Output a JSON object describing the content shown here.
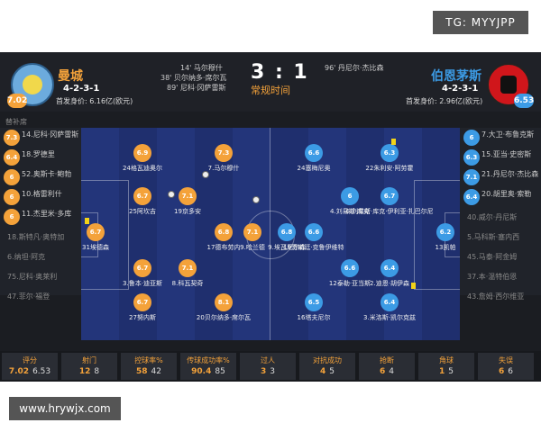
{
  "watermarks": {
    "top_right": "TG: MYYJPP",
    "bottom_left": "www.hrywjx.com"
  },
  "match": {
    "home": {
      "name": "曼城",
      "formation": "4-2-3-1",
      "value": "首发身价: 6.16亿(欧元)",
      "rating": "7.02",
      "color": "#f4a23a"
    },
    "away": {
      "name": "伯恩茅斯",
      "formation": "4-2-3-1",
      "value": "首发身价: 2.96亿(欧元)",
      "rating": "6.53",
      "color": "#3c9be5"
    },
    "score": "3 : 1",
    "status": "常规时间",
    "home_events": [
      "14' 马尔穆什",
      "38' 贝尔纳多·席尔瓦",
      "89' 尼科·冈萨雷斯"
    ],
    "away_events": [
      "96' 丹尼尔·杰比森"
    ]
  },
  "home_bench": {
    "title": "替补席",
    "items": [
      {
        "rating": "7.3",
        "name": "14.尼科·冈萨雷斯",
        "dim": false
      },
      {
        "rating": "6.4",
        "name": "18.罗德里",
        "dim": false
      },
      {
        "rating": "6",
        "name": "52.奥斯卡·鲍勃",
        "dim": false
      },
      {
        "rating": "6",
        "name": "10.格雷利什",
        "dim": false
      },
      {
        "rating": "6",
        "name": "11.杰里米·多库",
        "dim": false
      },
      {
        "rating": "",
        "name": "18.斯特凡·奥特加",
        "dim": true
      },
      {
        "rating": "",
        "name": "6.纳坦·阿克",
        "dim": true
      },
      {
        "rating": "",
        "name": "75.尼科·奥莱利",
        "dim": true
      },
      {
        "rating": "",
        "name": "47.菲尔·福登",
        "dim": true
      }
    ]
  },
  "away_bench": {
    "title": "替补席",
    "items": [
      {
        "rating": "6",
        "name": "7.大卫·布鲁克斯",
        "dim": false
      },
      {
        "rating": "6.3",
        "name": "15.亚当·史密斯",
        "dim": false
      },
      {
        "rating": "7.1",
        "name": "21.丹尼尔·杰比森",
        "dim": false
      },
      {
        "rating": "6.4",
        "name": "20.胡里奥·索勒",
        "dim": false
      },
      {
        "rating": "",
        "name": "40.威尔·丹尼斯",
        "dim": true
      },
      {
        "rating": "",
        "name": "5.马科斯·塞内西",
        "dim": true
      },
      {
        "rating": "",
        "name": "45.马泰·阿金姆",
        "dim": true
      },
      {
        "rating": "",
        "name": "37.本·温特伯恩",
        "dim": true
      },
      {
        "rating": "",
        "name": "43.詹姆·西尔维亚",
        "dim": true
      }
    ]
  },
  "home_players": [
    {
      "rating": "6.7",
      "name": "31埃德森",
      "col": 0,
      "row": 2
    },
    {
      "rating": "6.7",
      "name": "27努内斯",
      "col": 1,
      "row": 4
    },
    {
      "rating": "6.7",
      "name": "3.鲁本·迪亚斯",
      "col": 1,
      "row": 3
    },
    {
      "rating": "6.7",
      "name": "25阿坎吉",
      "col": 1,
      "row": 1
    },
    {
      "rating": "6.9",
      "name": "24格瓦迪奥尔",
      "col": 1,
      "row": 0
    },
    {
      "rating": "7.1",
      "name": "19京多安",
      "col": 2,
      "row": 1
    },
    {
      "rating": "7.1",
      "name": "8.科瓦契奇",
      "col": 2,
      "row": 3
    },
    {
      "rating": "7.3",
      "name": "7.马尔穆什",
      "col": 3,
      "row": 0
    },
    {
      "rating": "6.8",
      "name": "17德布劳内",
      "col": 3,
      "row": 2
    },
    {
      "rating": "8.1",
      "name": "20贝尔纳多·席尔瓦",
      "col": 3,
      "row": 4
    },
    {
      "rating": "7.1",
      "name": "9.哈兰德",
      "col": 4,
      "row": 2
    }
  ],
  "away_players": [
    {
      "rating": "6.2",
      "name": "13凯帕",
      "col": 0,
      "row": 2
    },
    {
      "rating": "6.3",
      "name": "22朱利安·阿劳霍",
      "col": 1,
      "row": 0
    },
    {
      "rating": "6.7",
      "name": "6.刘易斯·库克·伊利亚·扎巴尔尼",
      "col": 1,
      "row": 1
    },
    {
      "rating": "6.4",
      "name": "2.迪恩·胡伊森",
      "col": 1,
      "row": 3
    },
    {
      "rating": "6.4",
      "name": "3.米洛斯·凯尔克兹",
      "col": 1,
      "row": 4
    },
    {
      "rating": "6",
      "name": "4.刘易斯·库克",
      "col": 2,
      "row": 1
    },
    {
      "rating": "6.6",
      "name": "12泰勒·亚当斯",
      "col": 2,
      "row": 3
    },
    {
      "rating": "6.6",
      "name": "24塞梅尼奥",
      "col": 3,
      "row": 0
    },
    {
      "rating": "6.6",
      "name": "19贾斯廷·克鲁伊维特",
      "col": 3,
      "row": 2
    },
    {
      "rating": "6.5",
      "name": "16塔夫尼尔",
      "col": 3,
      "row": 4
    },
    {
      "rating": "6.8",
      "name": "9.埃瓦尼尔森",
      "col": 4,
      "row": 2
    }
  ],
  "stats": [
    {
      "label": "评分",
      "home": "7.02",
      "away": "6.53"
    },
    {
      "label": "射门",
      "home": "12",
      "away": "8"
    },
    {
      "label": "控球率%",
      "home": "58",
      "away": "42"
    },
    {
      "label": "传球成功率%",
      "home": "90.4",
      "away": "85"
    },
    {
      "label": "过人",
      "home": "3",
      "away": "3"
    },
    {
      "label": "对抗成功",
      "home": "4",
      "away": "5"
    },
    {
      "label": "抢断",
      "home": "6",
      "away": "4"
    },
    {
      "label": "角球",
      "home": "1",
      "away": "5"
    },
    {
      "label": "失误",
      "home": "6",
      "away": "6"
    }
  ]
}
